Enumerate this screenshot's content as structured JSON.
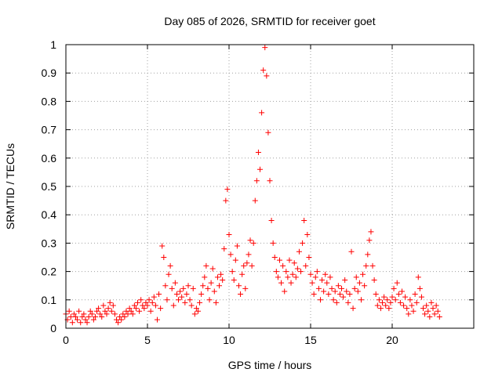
{
  "chart_data": {
    "type": "scatter",
    "title": "Day 085 of 2026, SRMTID for receiver goet",
    "xlabel": "GPS time / hours",
    "ylabel": "SRMTID / TECUs",
    "xlim": [
      0,
      25
    ],
    "ylim": [
      0,
      1
    ],
    "xticks": [
      0,
      5,
      10,
      15,
      20
    ],
    "xtick_labels": [
      "0",
      "5",
      "10",
      "15",
      "20"
    ],
    "yticks": [
      0,
      0.1,
      0.2,
      0.3,
      0.4,
      0.5,
      0.6,
      0.7,
      0.8,
      0.9,
      1
    ],
    "ytick_labels": [
      "0",
      "0.1",
      "0.2",
      "0.3",
      "0.4",
      "0.5",
      "0.6",
      "0.7",
      "0.8",
      "0.9",
      "1"
    ],
    "grid": true,
    "marker": "+",
    "marker_color": "#ff0000",
    "series": [
      {
        "name": "SRMTID",
        "points": [
          [
            0.0,
            0.05
          ],
          [
            0.1,
            0.03
          ],
          [
            0.2,
            0.06
          ],
          [
            0.3,
            0.04
          ],
          [
            0.4,
            0.02
          ],
          [
            0.5,
            0.05
          ],
          [
            0.6,
            0.04
          ],
          [
            0.7,
            0.03
          ],
          [
            0.8,
            0.06
          ],
          [
            0.9,
            0.02
          ],
          [
            1.0,
            0.04
          ],
          [
            1.1,
            0.05
          ],
          [
            1.2,
            0.03
          ],
          [
            1.3,
            0.02
          ],
          [
            1.4,
            0.04
          ],
          [
            1.5,
            0.06
          ],
          [
            1.6,
            0.05
          ],
          [
            1.7,
            0.03
          ],
          [
            1.8,
            0.04
          ],
          [
            1.9,
            0.06
          ],
          [
            2.0,
            0.07
          ],
          [
            2.1,
            0.05
          ],
          [
            2.2,
            0.04
          ],
          [
            2.3,
            0.08
          ],
          [
            2.4,
            0.06
          ],
          [
            2.5,
            0.05
          ],
          [
            2.6,
            0.07
          ],
          [
            2.7,
            0.09
          ],
          [
            2.8,
            0.06
          ],
          [
            2.9,
            0.08
          ],
          [
            3.0,
            0.05
          ],
          [
            3.1,
            0.03
          ],
          [
            3.2,
            0.02
          ],
          [
            3.3,
            0.04
          ],
          [
            3.4,
            0.03
          ],
          [
            3.5,
            0.05
          ],
          [
            3.6,
            0.04
          ],
          [
            3.7,
            0.06
          ],
          [
            3.8,
            0.05
          ],
          [
            3.9,
            0.07
          ],
          [
            4.0,
            0.06
          ],
          [
            4.1,
            0.05
          ],
          [
            4.2,
            0.08
          ],
          [
            4.3,
            0.07
          ],
          [
            4.4,
            0.09
          ],
          [
            4.5,
            0.06
          ],
          [
            4.6,
            0.1
          ],
          [
            4.7,
            0.08
          ],
          [
            4.8,
            0.07
          ],
          [
            4.9,
            0.09
          ],
          [
            5.0,
            0.08
          ],
          [
            5.1,
            0.1
          ],
          [
            5.2,
            0.06
          ],
          [
            5.3,
            0.09
          ],
          [
            5.4,
            0.11
          ],
          [
            5.5,
            0.08
          ],
          [
            5.6,
            0.03
          ],
          [
            5.7,
            0.12
          ],
          [
            5.8,
            0.07
          ],
          [
            5.9,
            0.29
          ],
          [
            6.0,
            0.25
          ],
          [
            6.1,
            0.15
          ],
          [
            6.2,
            0.1
          ],
          [
            6.3,
            0.19
          ],
          [
            6.4,
            0.22
          ],
          [
            6.5,
            0.14
          ],
          [
            6.6,
            0.08
          ],
          [
            6.7,
            0.16
          ],
          [
            6.8,
            0.12
          ],
          [
            6.9,
            0.1
          ],
          [
            7.0,
            0.13
          ],
          [
            7.1,
            0.11
          ],
          [
            7.2,
            0.14
          ],
          [
            7.3,
            0.09
          ],
          [
            7.4,
            0.12
          ],
          [
            7.5,
            0.15
          ],
          [
            7.6,
            0.1
          ],
          [
            7.7,
            0.08
          ],
          [
            7.8,
            0.14
          ],
          [
            7.9,
            0.05
          ],
          [
            8.0,
            0.07
          ],
          [
            8.1,
            0.06
          ],
          [
            8.2,
            0.09
          ],
          [
            8.3,
            0.12
          ],
          [
            8.4,
            0.15
          ],
          [
            8.5,
            0.18
          ],
          [
            8.6,
            0.22
          ],
          [
            8.7,
            0.14
          ],
          [
            8.8,
            0.1
          ],
          [
            8.9,
            0.16
          ],
          [
            9.0,
            0.21
          ],
          [
            9.1,
            0.13
          ],
          [
            9.2,
            0.09
          ],
          [
            9.3,
            0.18
          ],
          [
            9.4,
            0.15
          ],
          [
            9.5,
            0.19
          ],
          [
            9.6,
            0.17
          ],
          [
            9.7,
            0.28
          ],
          [
            9.8,
            0.45
          ],
          [
            9.9,
            0.49
          ],
          [
            10.0,
            0.33
          ],
          [
            10.1,
            0.26
          ],
          [
            10.2,
            0.2
          ],
          [
            10.3,
            0.17
          ],
          [
            10.4,
            0.24
          ],
          [
            10.5,
            0.29
          ],
          [
            10.6,
            0.15
          ],
          [
            10.7,
            0.12
          ],
          [
            10.8,
            0.19
          ],
          [
            10.9,
            0.22
          ],
          [
            11.0,
            0.14
          ],
          [
            11.1,
            0.23
          ],
          [
            11.2,
            0.26
          ],
          [
            11.3,
            0.31
          ],
          [
            11.4,
            0.22
          ],
          [
            11.5,
            0.3
          ],
          [
            11.6,
            0.45
          ],
          [
            11.7,
            0.52
          ],
          [
            11.8,
            0.62
          ],
          [
            11.9,
            0.56
          ],
          [
            12.0,
            0.76
          ],
          [
            12.1,
            0.91
          ],
          [
            12.2,
            0.99
          ],
          [
            12.3,
            0.89
          ],
          [
            12.4,
            0.69
          ],
          [
            12.5,
            0.52
          ],
          [
            12.6,
            0.38
          ],
          [
            12.7,
            0.3
          ],
          [
            12.8,
            0.25
          ],
          [
            12.9,
            0.2
          ],
          [
            13.0,
            0.18
          ],
          [
            13.1,
            0.24
          ],
          [
            13.2,
            0.16
          ],
          [
            13.3,
            0.22
          ],
          [
            13.4,
            0.13
          ],
          [
            13.5,
            0.2
          ],
          [
            13.6,
            0.18
          ],
          [
            13.7,
            0.24
          ],
          [
            13.8,
            0.16
          ],
          [
            13.9,
            0.19
          ],
          [
            14.0,
            0.23
          ],
          [
            14.1,
            0.18
          ],
          [
            14.2,
            0.21
          ],
          [
            14.3,
            0.27
          ],
          [
            14.4,
            0.2
          ],
          [
            14.5,
            0.3
          ],
          [
            14.6,
            0.38
          ],
          [
            14.7,
            0.22
          ],
          [
            14.8,
            0.33
          ],
          [
            14.9,
            0.25
          ],
          [
            15.0,
            0.19
          ],
          [
            15.1,
            0.16
          ],
          [
            15.2,
            0.12
          ],
          [
            15.3,
            0.18
          ],
          [
            15.4,
            0.2
          ],
          [
            15.5,
            0.14
          ],
          [
            15.6,
            0.1
          ],
          [
            15.7,
            0.17
          ],
          [
            15.8,
            0.13
          ],
          [
            15.9,
            0.19
          ],
          [
            16.0,
            0.16
          ],
          [
            16.1,
            0.12
          ],
          [
            16.2,
            0.18
          ],
          [
            16.3,
            0.14
          ],
          [
            16.4,
            0.1
          ],
          [
            16.5,
            0.13
          ],
          [
            16.6,
            0.09
          ],
          [
            16.7,
            0.15
          ],
          [
            16.8,
            0.12
          ],
          [
            16.9,
            0.14
          ],
          [
            17.0,
            0.11
          ],
          [
            17.1,
            0.17
          ],
          [
            17.2,
            0.13
          ],
          [
            17.3,
            0.09
          ],
          [
            17.4,
            0.12
          ],
          [
            17.5,
            0.27
          ],
          [
            17.6,
            0.07
          ],
          [
            17.7,
            0.14
          ],
          [
            17.8,
            0.18
          ],
          [
            17.9,
            0.13
          ],
          [
            18.0,
            0.16
          ],
          [
            18.1,
            0.1
          ],
          [
            18.2,
            0.19
          ],
          [
            18.3,
            0.15
          ],
          [
            18.4,
            0.22
          ],
          [
            18.5,
            0.26
          ],
          [
            18.6,
            0.31
          ],
          [
            18.7,
            0.34
          ],
          [
            18.8,
            0.22
          ],
          [
            18.9,
            0.17
          ],
          [
            19.0,
            0.12
          ],
          [
            19.1,
            0.08
          ],
          [
            19.2,
            0.1
          ],
          [
            19.3,
            0.07
          ],
          [
            19.4,
            0.09
          ],
          [
            19.5,
            0.11
          ],
          [
            19.6,
            0.08
          ],
          [
            19.7,
            0.1
          ],
          [
            19.8,
            0.07
          ],
          [
            19.9,
            0.09
          ],
          [
            20.0,
            0.11
          ],
          [
            20.1,
            0.14
          ],
          [
            20.2,
            0.1
          ],
          [
            20.3,
            0.16
          ],
          [
            20.4,
            0.12
          ],
          [
            20.5,
            0.09
          ],
          [
            20.6,
            0.13
          ],
          [
            20.7,
            0.08
          ],
          [
            20.8,
            0.11
          ],
          [
            20.9,
            0.07
          ],
          [
            21.0,
            0.05
          ],
          [
            21.1,
            0.1
          ],
          [
            21.2,
            0.08
          ],
          [
            21.3,
            0.06
          ],
          [
            21.4,
            0.12
          ],
          [
            21.5,
            0.09
          ],
          [
            21.6,
            0.18
          ],
          [
            21.7,
            0.14
          ],
          [
            21.8,
            0.11
          ],
          [
            21.9,
            0.07
          ],
          [
            22.0,
            0.05
          ],
          [
            22.1,
            0.08
          ],
          [
            22.2,
            0.06
          ],
          [
            22.3,
            0.04
          ],
          [
            22.4,
            0.09
          ],
          [
            22.5,
            0.07
          ],
          [
            22.6,
            0.05
          ],
          [
            22.7,
            0.08
          ],
          [
            22.8,
            0.06
          ],
          [
            22.9,
            0.04
          ]
        ]
      }
    ]
  }
}
